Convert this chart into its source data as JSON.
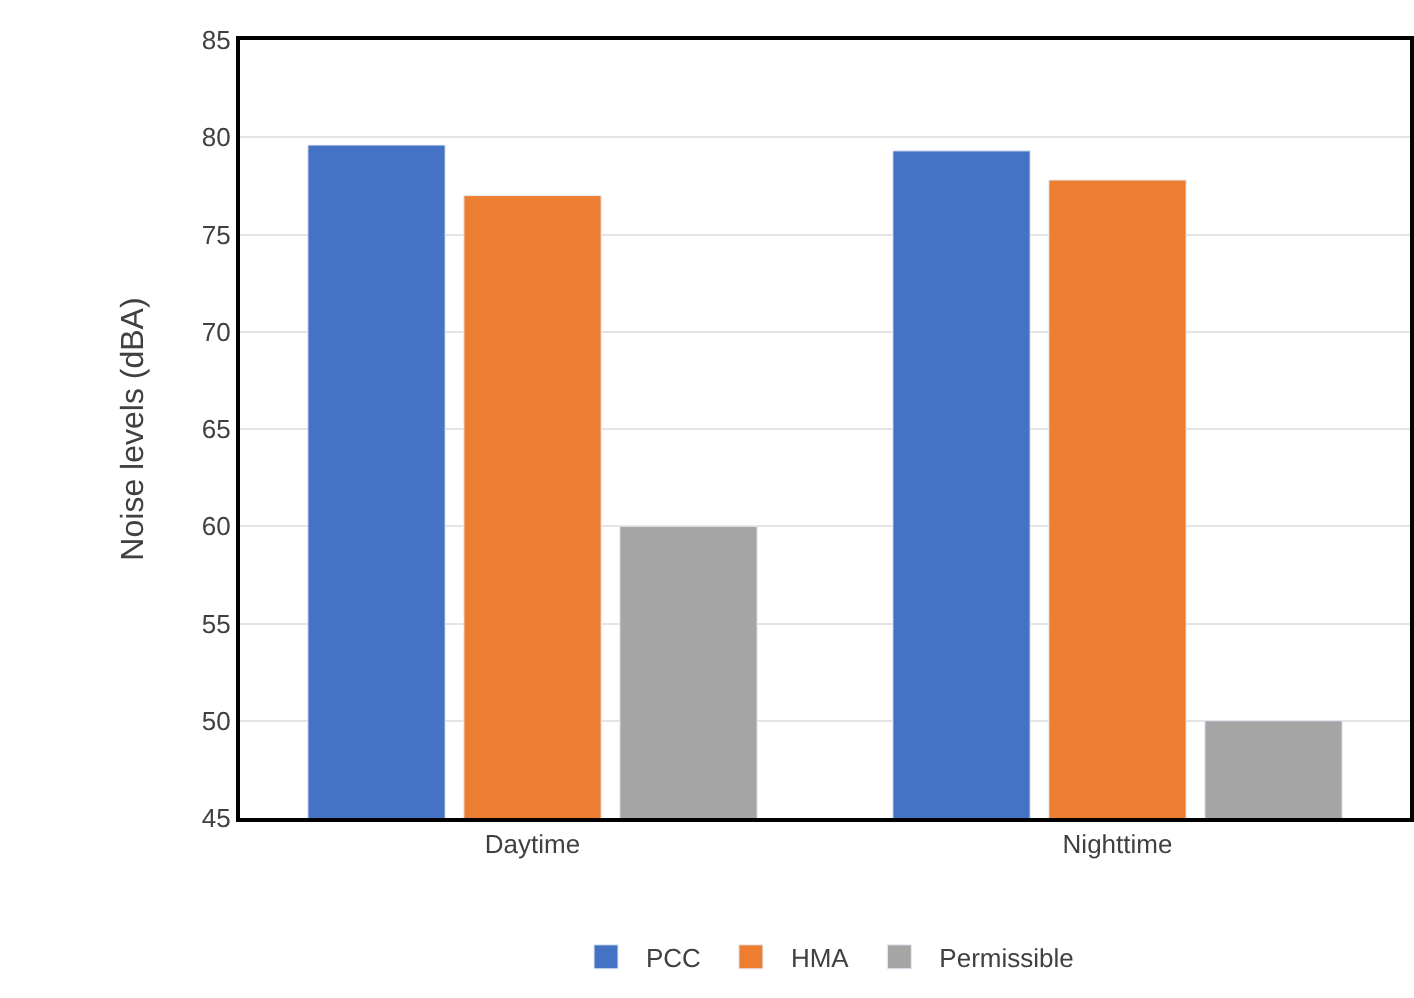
{
  "chart_data": {
    "type": "bar",
    "ylabel": "Noise levels (dBA)",
    "categories": [
      "Daytime",
      "Nighttime"
    ],
    "series": [
      {
        "name": "PCC",
        "color": "#4472c4",
        "values": [
          79.6,
          79.3
        ]
      },
      {
        "name": "HMA",
        "color": "#ed7d31",
        "values": [
          77.0,
          77.8
        ]
      },
      {
        "name": "Permissible",
        "color": "#a5a5a5",
        "values": [
          60,
          50
        ]
      }
    ],
    "ylim": [
      45,
      85
    ],
    "yticks": [
      45,
      50,
      55,
      60,
      65,
      70,
      75,
      80,
      85
    ],
    "grid": "y",
    "legend": "bottom"
  }
}
